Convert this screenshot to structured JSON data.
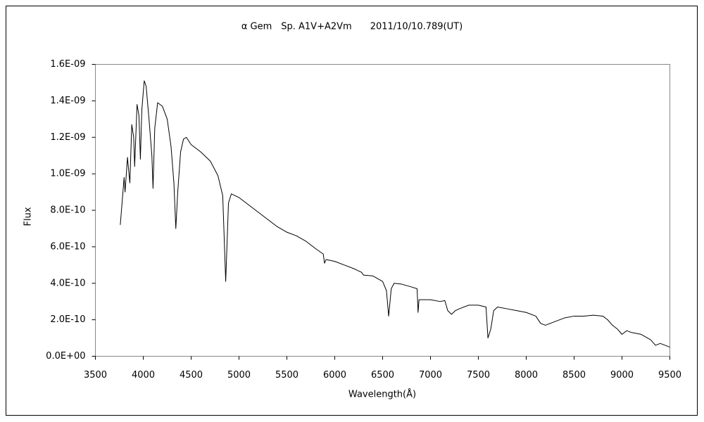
{
  "chart_data": {
    "type": "line",
    "title": "α Gem　Sp. A1V+A2Vm　　2011/10/10.789(UT)",
    "x_label": "Wavelength(Å)",
    "y_label": "Flux",
    "color": "#000000",
    "x": [
      3760,
      3780,
      3800,
      3810,
      3835,
      3860,
      3880,
      3900,
      3910,
      3935,
      3955,
      3970,
      3985,
      4010,
      4030,
      4060,
      4090,
      4102,
      4120,
      4150,
      4200,
      4250,
      4290,
      4320,
      4340,
      4360,
      4390,
      4420,
      4450,
      4500,
      4600,
      4700,
      4780,
      4830,
      4861,
      4890,
      4920,
      5000,
      5100,
      5200,
      5300,
      5400,
      5500,
      5600,
      5700,
      5800,
      5880,
      5893,
      5910,
      6000,
      6100,
      6200,
      6280,
      6300,
      6400,
      6500,
      6540,
      6563,
      6590,
      6620,
      6700,
      6800,
      6860,
      6870,
      6880,
      6950,
      7000,
      7100,
      7150,
      7180,
      7220,
      7260,
      7300,
      7400,
      7500,
      7580,
      7600,
      7630,
      7660,
      7700,
      7800,
      7900,
      8000,
      8100,
      8150,
      8200,
      8300,
      8400,
      8500,
      8600,
      8700,
      8800,
      8850,
      8900,
      8950,
      9000,
      9050,
      9100,
      9200,
      9300,
      9350,
      9400,
      9450,
      9500
    ],
    "values": [
      7.2e-10,
      8.5e-10,
      9.8e-10,
      9e-10,
      1.09e-09,
      9.5e-10,
      1.27e-09,
      1.2e-09,
      1.04e-09,
      1.38e-09,
      1.32e-09,
      1.08e-09,
      1.35e-09,
      1.51e-09,
      1.48e-09,
      1.3e-09,
      1.1e-09,
      9.2e-10,
      1.25e-09,
      1.39e-09,
      1.37e-09,
      1.3e-09,
      1.15e-09,
      9.5e-10,
      7e-10,
      9e-10,
      1.12e-09,
      1.19e-09,
      1.2e-09,
      1.16e-09,
      1.12e-09,
      1.07e-09,
      9.9e-10,
      8.8e-10,
      4.1e-10,
      8.4e-10,
      8.9e-10,
      8.7e-10,
      8.3e-10,
      7.9e-10,
      7.5e-10,
      7.1e-10,
      6.8e-10,
      6.6e-10,
      6.3e-10,
      5.9e-10,
      5.6e-10,
      5.1e-10,
      5.3e-10,
      5.2e-10,
      5e-10,
      4.8e-10,
      4.6e-10,
      4.45e-10,
      4.4e-10,
      4.1e-10,
      3.6e-10,
      2.2e-10,
      3.7e-10,
      4e-10,
      3.95e-10,
      3.8e-10,
      3.7e-10,
      2.4e-10,
      3.1e-10,
      3.1e-10,
      3.1e-10,
      3e-10,
      3.05e-10,
      2.5e-10,
      2.3e-10,
      2.5e-10,
      2.6e-10,
      2.8e-10,
      2.8e-10,
      2.7e-10,
      1e-10,
      1.5e-10,
      2.5e-10,
      2.7e-10,
      2.6e-10,
      2.5e-10,
      2.4e-10,
      2.2e-10,
      1.8e-10,
      1.7e-10,
      1.9e-10,
      2.1e-10,
      2.2e-10,
      2.2e-10,
      2.25e-10,
      2.2e-10,
      2e-10,
      1.7e-10,
      1.5e-10,
      1.2e-10,
      1.4e-10,
      1.3e-10,
      1.2e-10,
      9e-11,
      6e-11,
      7e-11,
      6e-11,
      5e-11
    ],
    "xlim": [
      3500,
      9500
    ],
    "xticks": [
      3500,
      4000,
      4500,
      5000,
      5500,
      6000,
      6500,
      7000,
      7500,
      8000,
      8500,
      9000,
      9500
    ],
    "ylim": [
      0,
      1.6e-09
    ],
    "yticks": [
      {
        "value": 0,
        "label": "0.0E+00"
      },
      {
        "value": 2e-10,
        "label": "2.0E-10"
      },
      {
        "value": 4e-10,
        "label": "4.0E-10"
      },
      {
        "value": 6e-10,
        "label": "6.0E-10"
      },
      {
        "value": 8e-10,
        "label": "8.0E-10"
      },
      {
        "value": 1e-09,
        "label": "1.0E-09"
      },
      {
        "value": 1.2e-09,
        "label": "1.2E-09"
      },
      {
        "value": 1.4e-09,
        "label": "1.4E-09"
      },
      {
        "value": 1.6e-09,
        "label": "1.6E-09"
      }
    ],
    "grid": false
  }
}
